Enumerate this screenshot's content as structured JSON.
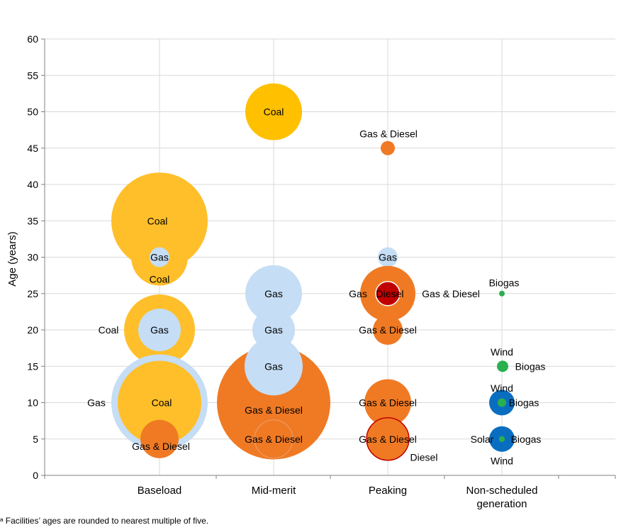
{
  "chart_data": {
    "type": "bubble",
    "title": "",
    "xlabel": "",
    "ylabel": "Age (years)",
    "categories": [
      "Baseload",
      "Mid-merit",
      "Peaking",
      "Non-scheduled generation"
    ],
    "ylim": [
      0,
      60
    ],
    "yticks": [
      0,
      5,
      10,
      15,
      20,
      25,
      30,
      35,
      40,
      45,
      50,
      55,
      60
    ],
    "grid": true,
    "legend": "none",
    "colors": {
      "coal": "#FFC000",
      "coal_alt": "#FFBF2A",
      "gas": "#C5DDF5",
      "gas_diesel": "#F07A24",
      "diesel": "#C00000",
      "wind": "#0A6EC0",
      "biogas": "#2AB04F",
      "solar": "#8AA83A"
    },
    "points": [
      {
        "category": "Baseload",
        "age": 35,
        "fuel": "Coal",
        "relative_size": 68,
        "color": "#FFBF2A",
        "label": "Coal"
      },
      {
        "category": "Baseload",
        "age": 30,
        "fuel": "Coal",
        "relative_size": 40,
        "color": "#FFBF2A",
        "label": "Coal"
      },
      {
        "category": "Baseload",
        "age": 30,
        "fuel": "Gas",
        "relative_size": 14,
        "color": "#C5DDF5",
        "label": "Gas"
      },
      {
        "category": "Baseload",
        "age": 20,
        "fuel": "Coal",
        "relative_size": 50,
        "color": "#FFBF2A",
        "label": "Coal"
      },
      {
        "category": "Baseload",
        "age": 20,
        "fuel": "Gas",
        "relative_size": 30,
        "color": "#C5DDF5",
        "label": "Gas"
      },
      {
        "category": "Baseload",
        "age": 10,
        "fuel": "Gas",
        "relative_size": 68,
        "color": "#C5DDF5",
        "label": "Gas"
      },
      {
        "category": "Baseload",
        "age": 10,
        "fuel": "Coal",
        "relative_size": 59,
        "color": "#FFBF2A",
        "label": "Coal"
      },
      {
        "category": "Baseload",
        "age": 5,
        "fuel": "Gas & Diesel",
        "relative_size": 27,
        "color": "#F07A24",
        "label": "Gas & Diesel"
      },
      {
        "category": "Mid-merit",
        "age": 50,
        "fuel": "Coal",
        "relative_size": 40,
        "color": "#FFC000",
        "label": "Coal"
      },
      {
        "category": "Mid-merit",
        "age": 25,
        "fuel": "Gas",
        "relative_size": 40,
        "color": "#C5DDF5",
        "label": "Gas"
      },
      {
        "category": "Mid-merit",
        "age": 20,
        "fuel": "Gas",
        "relative_size": 30,
        "color": "#C5DDF5",
        "label": "Gas"
      },
      {
        "category": "Mid-merit",
        "age": 10,
        "fuel": "Gas & Diesel",
        "relative_size": 80,
        "color": "#F07A24",
        "label": "Gas & Diesel"
      },
      {
        "category": "Mid-merit",
        "age": 15,
        "fuel": "Gas",
        "relative_size": 41,
        "color": "#C5DDF5",
        "label": "Gas"
      },
      {
        "category": "Mid-merit",
        "age": 5,
        "fuel": "Gas & Diesel",
        "relative_size": 27,
        "color": "#F07A24",
        "label": "Gas & Diesel"
      },
      {
        "category": "Peaking",
        "age": 45,
        "fuel": "Gas & Diesel",
        "relative_size": 10,
        "color": "#F07A24",
        "label": "Gas & Diesel"
      },
      {
        "category": "Peaking",
        "age": 30,
        "fuel": "Gas",
        "relative_size": 14,
        "color": "#C5DDF5",
        "label": "Gas"
      },
      {
        "category": "Peaking",
        "age": 25,
        "fuel": "Gas & Diesel",
        "relative_size": 39,
        "color": "#F07A24",
        "label": "Gas & Diesel"
      },
      {
        "category": "Peaking",
        "age": 25,
        "fuel": "Gas",
        "relative_size": 22,
        "color": "#F07A24",
        "label": "Gas"
      },
      {
        "category": "Peaking",
        "age": 25,
        "fuel": "Diesel",
        "relative_size": 17,
        "color": "#C00000",
        "label": "Diesel"
      },
      {
        "category": "Peaking",
        "age": 20,
        "fuel": "Gas & Diesel",
        "relative_size": 21,
        "color": "#F07A24",
        "label": "Gas & Diesel"
      },
      {
        "category": "Peaking",
        "age": 10,
        "fuel": "Gas & Diesel",
        "relative_size": 33,
        "color": "#F07A24",
        "label": "Gas & Diesel"
      },
      {
        "category": "Peaking",
        "age": 5,
        "fuel": "Gas & Diesel",
        "relative_size": 30,
        "color": "#F07A24",
        "label": "Gas & Diesel"
      },
      {
        "category": "Peaking",
        "age": 5,
        "fuel": "Diesel",
        "relative_size": 30,
        "color": "#F07A24",
        "label": "Diesel"
      },
      {
        "category": "Non-scheduled generation",
        "age": 25,
        "fuel": "Biogas",
        "relative_size": 4,
        "color": "#2AB04F",
        "label": "Biogas"
      },
      {
        "category": "Non-scheduled generation",
        "age": 15,
        "fuel": "Wind",
        "relative_size": 8,
        "color": "#2AB04F",
        "label": "Wind"
      },
      {
        "category": "Non-scheduled generation",
        "age": 15,
        "fuel": "Biogas",
        "relative_size": 8,
        "color": "#2AB04F",
        "label": "Biogas"
      },
      {
        "category": "Non-scheduled generation",
        "age": 10,
        "fuel": "Wind",
        "relative_size": 18,
        "color": "#0A6EC0",
        "label": "Wind"
      },
      {
        "category": "Non-scheduled generation",
        "age": 10,
        "fuel": "Biogas",
        "relative_size": 6,
        "color": "#2AB04F",
        "label": "Biogas"
      },
      {
        "category": "Non-scheduled generation",
        "age": 5,
        "fuel": "Wind",
        "relative_size": 18,
        "color": "#0A6EC0",
        "label": "Wind"
      },
      {
        "category": "Non-scheduled generation",
        "age": 5,
        "fuel": "Solar",
        "relative_size": 4,
        "color": "#8AA83A",
        "label": "Solar"
      },
      {
        "category": "Non-scheduled generation",
        "age": 5,
        "fuel": "Biogas",
        "relative_size": 4,
        "color": "#2AB04F",
        "label": "Biogas"
      }
    ],
    "annotations": [
      {
        "category": "Baseload",
        "age": 35,
        "text": "Coal"
      },
      {
        "category": "Baseload",
        "age": 30,
        "text": "Gas"
      },
      {
        "category": "Baseload",
        "age": 27,
        "text": "Coal"
      },
      {
        "category": "Baseload",
        "age": 20,
        "text": "Coal"
      },
      {
        "category": "Baseload",
        "age": 20,
        "text": "Gas"
      },
      {
        "category": "Baseload",
        "age": 10,
        "text": "Gas"
      },
      {
        "category": "Baseload",
        "age": 10,
        "text": "Coal"
      },
      {
        "category": "Baseload",
        "age": 4,
        "text": "Gas & Diesel"
      },
      {
        "category": "Mid-merit",
        "age": 50,
        "text": "Coal"
      },
      {
        "category": "Mid-merit",
        "age": 25,
        "text": "Gas"
      },
      {
        "category": "Mid-merit",
        "age": 20,
        "text": "Gas"
      },
      {
        "category": "Mid-merit",
        "age": 15,
        "text": "Gas"
      },
      {
        "category": "Mid-merit",
        "age": 9,
        "text": "Gas & Diesel"
      },
      {
        "category": "Mid-merit",
        "age": 5,
        "text": "Gas & Diesel"
      },
      {
        "category": "Peaking",
        "age": 47,
        "text": "Gas & Diesel"
      },
      {
        "category": "Peaking",
        "age": 30,
        "text": "Gas"
      },
      {
        "category": "Peaking",
        "age": 25,
        "text": "Gas"
      },
      {
        "category": "Peaking",
        "age": 25,
        "text": "Diesel"
      },
      {
        "category": "Peaking",
        "age": 25,
        "text": "Gas & Diesel"
      },
      {
        "category": "Peaking",
        "age": 20,
        "text": "Gas & Diesel"
      },
      {
        "category": "Peaking",
        "age": 10,
        "text": "Gas & Diesel"
      },
      {
        "category": "Peaking",
        "age": 5,
        "text": "Gas & Diesel"
      },
      {
        "category": "Peaking",
        "age": 2.5,
        "text": "Diesel"
      },
      {
        "category": "Non-scheduled generation",
        "age": 26.5,
        "text": "Biogas"
      },
      {
        "category": "Non-scheduled generation",
        "age": 17,
        "text": "Wind"
      },
      {
        "category": "Non-scheduled generation",
        "age": 15,
        "text": "Biogas"
      },
      {
        "category": "Non-scheduled generation",
        "age": 12,
        "text": "Wind"
      },
      {
        "category": "Non-scheduled generation",
        "age": 10,
        "text": "Biogas"
      },
      {
        "category": "Non-scheduled generation",
        "age": 5,
        "text": "Solar"
      },
      {
        "category": "Non-scheduled generation",
        "age": 5,
        "text": "Biogas"
      },
      {
        "category": "Non-scheduled generation",
        "age": 2,
        "text": "Wind"
      }
    ]
  },
  "footnote": "ᵃ Facilities’ ages are rounded to nearest multiple of five."
}
